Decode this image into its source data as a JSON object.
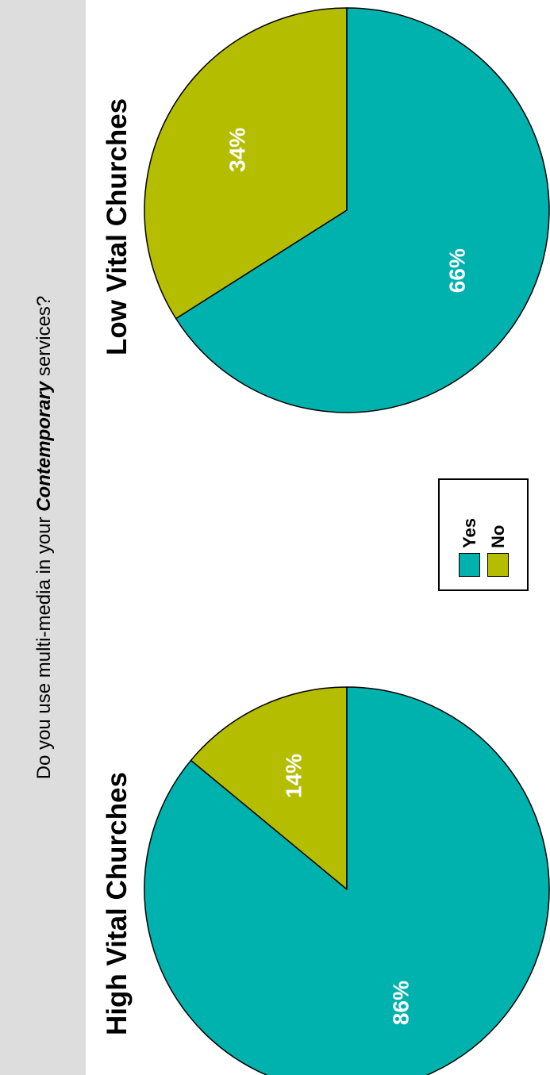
{
  "question": {
    "prefix": "Do you use multi-media in your ",
    "emphasis": "Contemporary",
    "suffix": " services?"
  },
  "colors": {
    "yes": "#00b2ad",
    "no": "#b4bd00",
    "outline": "#000000",
    "label": "#ffffff",
    "band": "#dddddd"
  },
  "legend": {
    "items": [
      {
        "label": "Yes",
        "color": "#00b2ad"
      },
      {
        "label": "No",
        "color": "#b4bd00"
      }
    ]
  },
  "chart_data": [
    {
      "type": "pie",
      "title": "High Vital Churches",
      "categories": [
        "Yes",
        "No"
      ],
      "values": [
        86,
        14
      ],
      "labels": [
        "86%",
        "14%"
      ],
      "colors": [
        "#00b2ad",
        "#b4bd00"
      ]
    },
    {
      "type": "pie",
      "title": "Low Vital Churches",
      "categories": [
        "Yes",
        "No"
      ],
      "values": [
        66,
        34
      ],
      "labels": [
        "66%",
        "34%"
      ],
      "colors": [
        "#00b2ad",
        "#b4bd00"
      ]
    }
  ]
}
